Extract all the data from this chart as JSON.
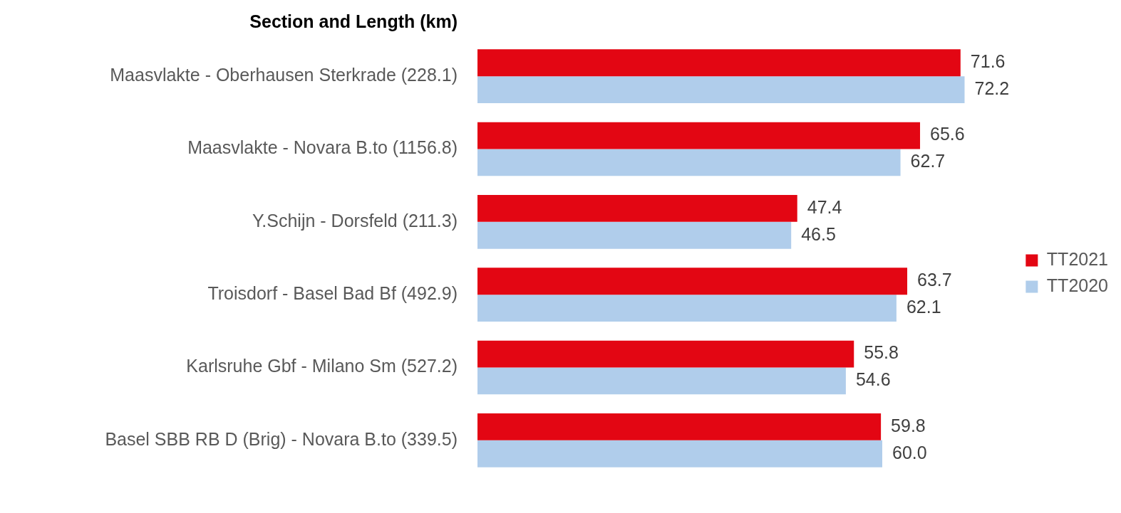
{
  "chart_data": {
    "type": "bar",
    "orientation": "horizontal",
    "ylabel": "Section and Length (km)",
    "categories": [
      "Maasvlakte - Oberhausen Sterkrade (228.1)",
      "Maasvlakte - Novara B.to (1156.8)",
      "Y.Schijn - Dorsfeld (211.3)",
      "Troisdorf - Basel Bad Bf (492.9)",
      "Karlsruhe Gbf - Milano Sm (527.2)",
      "Basel SBB RB D (Brig) - Novara B.to (339.5)"
    ],
    "series": [
      {
        "name": "TT2021",
        "color": "#e30613",
        "values": [
          71.6,
          65.6,
          47.4,
          63.7,
          55.8,
          59.8
        ],
        "value_labels": [
          "71.6",
          "65.6",
          "47.4",
          "63.7",
          "55.8",
          "59.8"
        ]
      },
      {
        "name": "TT2020",
        "color": "#b0cdeb",
        "values": [
          72.2,
          62.7,
          46.5,
          62.1,
          54.6,
          60.0
        ],
        "value_labels": [
          "72.2",
          "62.7",
          "46.5",
          "62.1",
          "54.6",
          "60.0"
        ]
      }
    ],
    "tick_labels": "y",
    "grid": false,
    "legend": "right"
  }
}
